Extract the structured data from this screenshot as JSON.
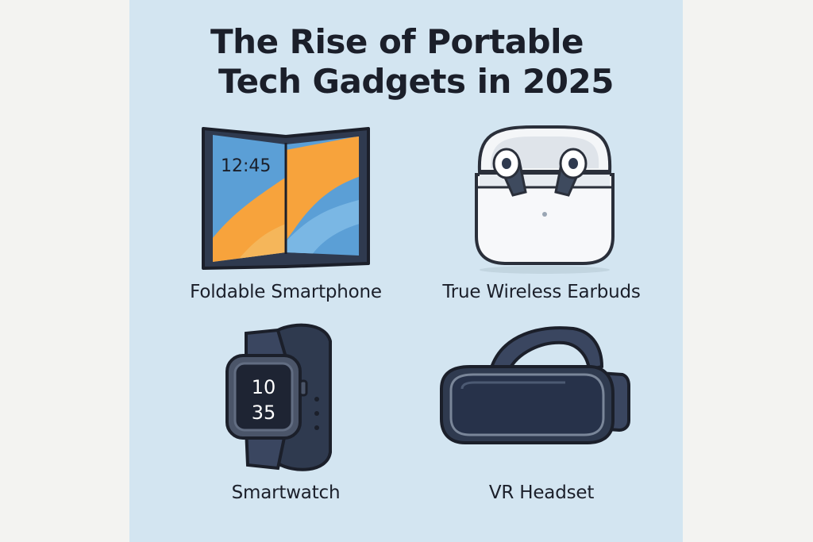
{
  "title": {
    "line1": "The Rise of Portable",
    "line2": "Tech Gadgets in 2025"
  },
  "gadgets": [
    {
      "label": "Foldable Smartphone",
      "icon": "foldable-phone-icon",
      "screen_text": "12:45"
    },
    {
      "label": "True Wireless Earbuds",
      "icon": "earbuds-case-icon"
    },
    {
      "label": "Smartwatch",
      "icon": "smartwatch-icon",
      "screen_text_top": "10",
      "screen_text_bottom": "35"
    },
    {
      "label": "VR Headset",
      "icon": "vr-headset-icon"
    }
  ],
  "colors": {
    "panel_bg": "#d3e5f1",
    "page_bg": "#f3f3f1",
    "ink": "#1b1f2a",
    "navy": "#2f3a4f",
    "orange": "#f7a33c",
    "blue": "#5b9fd6"
  }
}
